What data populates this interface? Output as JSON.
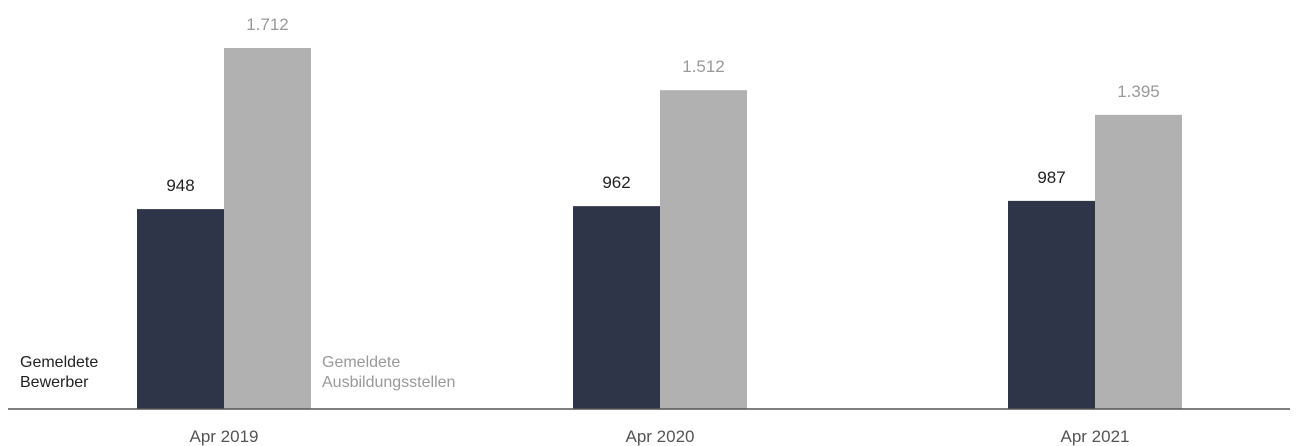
{
  "chart_data": {
    "type": "bar",
    "categories": [
      "Apr 2019",
      "Apr 2020",
      "Apr 2021"
    ],
    "series": [
      {
        "name": "Gemeldete\nBewerber",
        "values": [
          948,
          962,
          987
        ],
        "labels": [
          "948",
          "962",
          "987"
        ],
        "color": "#2f3549"
      },
      {
        "name": "Gemeldete\nAusbildungsstellen",
        "values": [
          1712,
          1512,
          1395
        ],
        "labels": [
          "1.712",
          "1.512",
          "1.395"
        ],
        "color": "#b1b1b1"
      }
    ],
    "title": "",
    "xlabel": "",
    "ylabel": "",
    "ylim": [
      0,
      1712
    ],
    "grid": false,
    "label_colors": {
      "series_0": "#222222",
      "series_1": "#999999",
      "axis": "#555555"
    }
  }
}
